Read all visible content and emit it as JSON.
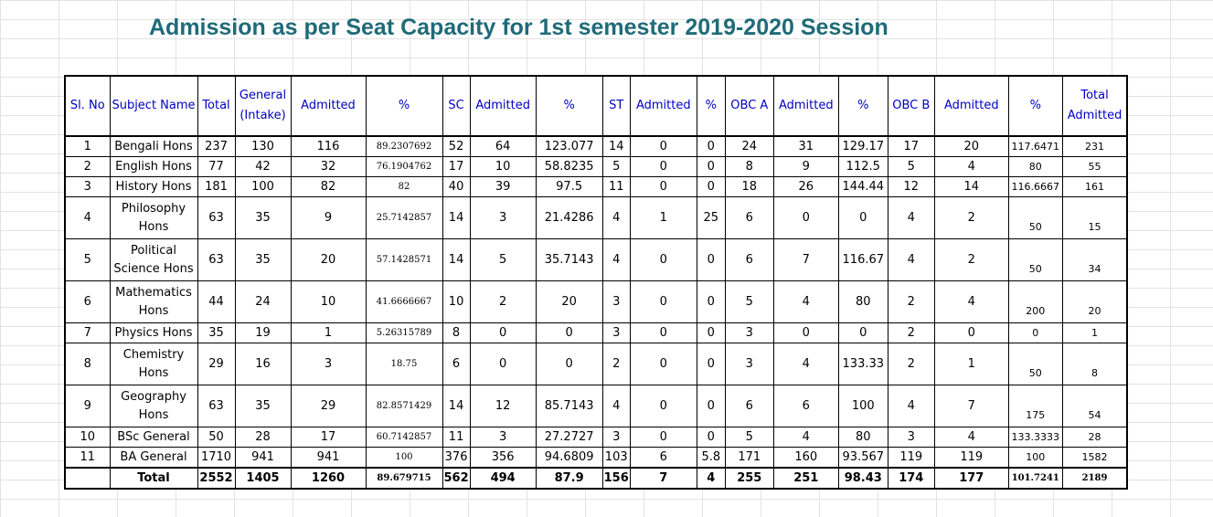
{
  "title": "Admission as per Seat Capacity for 1st semester 2019-2020 Session",
  "headers": [
    "Sl. No",
    "Subject Name",
    "Total",
    "General (Intake)",
    "Admitted",
    "%",
    "SC",
    "Admitted",
    "%",
    "ST",
    "Admitted",
    "%",
    "OBC A",
    "Admitted",
    "%",
    "OBC B",
    "Admitted",
    "%",
    "Total Admitted"
  ],
  "rows": [
    [
      "1",
      "Bengali Hons",
      "237",
      "130",
      "116",
      "89.2307692",
      "52",
      "64",
      "123.077",
      "14",
      "0",
      "0",
      "24",
      "31",
      "129.17",
      "17",
      "20",
      "117.6471",
      "231"
    ],
    [
      "2",
      "English Hons",
      "77",
      "42",
      "32",
      "76.1904762",
      "17",
      "10",
      "58.8235",
      "5",
      "0",
      "0",
      "8",
      "9",
      "112.5",
      "5",
      "4",
      "80",
      "55"
    ],
    [
      "3",
      "History Hons",
      "181",
      "100",
      "82",
      "82",
      "40",
      "39",
      "97.5",
      "11",
      "0",
      "0",
      "18",
      "26",
      "144.44",
      "12",
      "14",
      "116.6667",
      "161"
    ],
    [
      "4",
      "Philosophy Hons",
      "63",
      "35",
      "9",
      "25.7142857",
      "14",
      "3",
      "21.4286",
      "4",
      "1",
      "25",
      "6",
      "0",
      "0",
      "4",
      "2",
      "50",
      "15"
    ],
    [
      "5",
      "Political Science Hons",
      "63",
      "35",
      "20",
      "57.1428571",
      "14",
      "5",
      "35.7143",
      "4",
      "0",
      "0",
      "6",
      "7",
      "116.67",
      "4",
      "2",
      "50",
      "34"
    ],
    [
      "6",
      "Mathematics Hons",
      "44",
      "24",
      "10",
      "41.6666667",
      "10",
      "2",
      "20",
      "3",
      "0",
      "0",
      "5",
      "4",
      "80",
      "2",
      "4",
      "200",
      "20"
    ],
    [
      "7",
      "Physics Hons",
      "35",
      "19",
      "1",
      "5.26315789",
      "8",
      "0",
      "0",
      "3",
      "0",
      "0",
      "3",
      "0",
      "0",
      "2",
      "0",
      "0",
      "1"
    ],
    [
      "8",
      "Chemistry Hons",
      "29",
      "16",
      "3",
      "18.75",
      "6",
      "0",
      "0",
      "2",
      "0",
      "0",
      "3",
      "4",
      "133.33",
      "2",
      "1",
      "50",
      "8"
    ],
    [
      "9",
      "Geography Hons",
      "63",
      "35",
      "29",
      "82.8571429",
      "14",
      "12",
      "85.7143",
      "4",
      "0",
      "0",
      "6",
      "6",
      "100",
      "4",
      "7",
      "175",
      "54"
    ],
    [
      "10",
      "BSc General",
      "50",
      "28",
      "17",
      "60.7142857",
      "11",
      "3",
      "27.2727",
      "3",
      "0",
      "0",
      "5",
      "4",
      "80",
      "3",
      "4",
      "133.3333",
      "28"
    ],
    [
      "11",
      "BA General",
      "1710",
      "941",
      "941",
      "100",
      "376",
      "356",
      "94.6809",
      "103",
      "6",
      "5.8",
      "171",
      "160",
      "93.567",
      "119",
      "119",
      "100",
      "1582"
    ]
  ],
  "tall_rows": [
    3,
    4,
    5,
    7,
    8
  ],
  "total_row": [
    "",
    "Total",
    "2552",
    "1405",
    "1260",
    "89.679715",
    "562",
    "494",
    "87.9",
    "156",
    "7",
    "4",
    "255",
    "251",
    "98.43",
    "174",
    "177",
    "101.7241",
    "2189"
  ]
}
